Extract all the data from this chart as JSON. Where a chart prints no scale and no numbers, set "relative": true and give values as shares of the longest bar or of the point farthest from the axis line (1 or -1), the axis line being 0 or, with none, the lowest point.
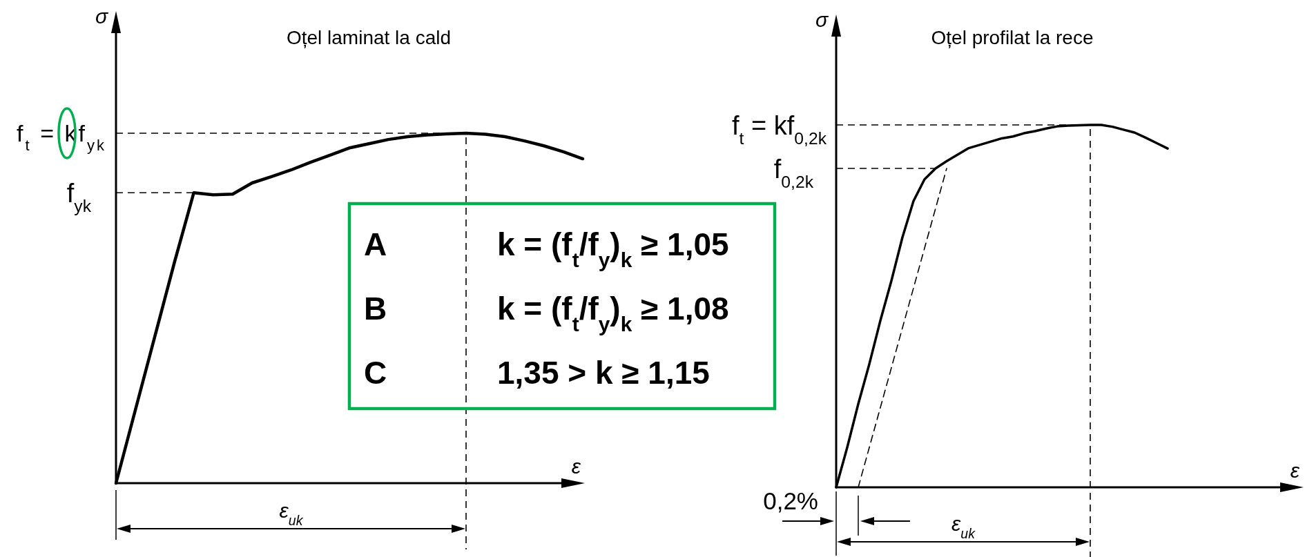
{
  "chart_data": [
    {
      "type": "line",
      "title": "Oțel laminat la cald",
      "xlabel": "ε",
      "ylabel": "σ",
      "relative": true,
      "line_style": "solid",
      "categories": [
        null,
        null,
        null,
        null,
        null,
        null,
        null,
        null,
        null,
        null,
        null,
        null,
        null,
        null,
        null,
        null,
        null,
        null,
        null,
        null,
        null,
        null,
        null,
        null,
        null
      ],
      "series": [
        {
          "color": "#000000",
          "values": [
            0,
            0.21,
            0.42,
            0.63,
            0.83,
            0.824,
            0.826,
            0.858,
            0.876,
            0.895,
            0.917,
            0.937,
            0.958,
            0.97,
            0.982,
            0.99,
            0.995,
            0.998,
            1,
            0.997,
            0.99,
            0.978,
            0.964,
            0.947,
            0.927
          ]
        }
      ],
      "ref_lines": [
        {
          "axis": "y",
          "value": 1,
          "label": "f$_{t}$ = kf$_{yk}$",
          "line_style": "dashed"
        },
        {
          "axis": "y",
          "value": 0.83,
          "label": "f$_{yk}$",
          "line_style": "dashed"
        }
      ],
      "annotations": [
        "A",
        "k = (f$_{t}$/f$_{y}$)$_{k}$ ≥ 1,05",
        "B",
        "k = (f$_{t}$/f$_{y}$)$_{k}$ ≥ 1,08",
        "C",
        "1,35 > k ≥ 1,15",
        "ε$_{uk}$"
      ]
    },
    {
      "type": "line",
      "title": "Oțel profilat la rece",
      "xlabel": "ε",
      "ylabel": "σ",
      "relative": true,
      "line_style": "solid",
      "categories": [
        null,
        null,
        null,
        null,
        null,
        null,
        null,
        null,
        null,
        null,
        null,
        null,
        null,
        null,
        null,
        null,
        null,
        null,
        null,
        null,
        null,
        null,
        null,
        null,
        null,
        null,
        null,
        null,
        null,
        null,
        null,
        null,
        null,
        null,
        null,
        null,
        null,
        null,
        null,
        null,
        null,
        null,
        null
      ],
      "series": [
        {
          "color": "#000000",
          "values": [
            0,
            0.11,
            0.23,
            0.34,
            0.46,
            0.57,
            0.69,
            0.79,
            0.85,
            0.88,
            0.9,
            0.918,
            0.936,
            0.945,
            0.954,
            0.963,
            0.968,
            0.977,
            0.983,
            0.99,
            0.996,
            0.998,
            0.999,
            1,
            1,
            0.995,
            0.987,
            0.979,
            0.965,
            0.95,
            0.935,
            null,
            null,
            null,
            null,
            null,
            null,
            null,
            null,
            null,
            null,
            null,
            null
          ]
        },
        {
          "color": "#000000",
          "line_style": "dashed",
          "values": [
            null,
            null,
            0,
            0.11,
            0.22,
            0.33,
            0.44,
            0.55,
            0.66,
            0.77,
            0.88,
            null,
            null,
            null,
            null,
            null,
            null,
            null,
            null,
            null,
            null,
            null,
            null,
            null,
            null,
            null,
            null,
            null,
            null,
            null,
            null,
            null,
            null,
            null,
            null,
            null,
            null,
            null,
            null,
            null,
            null,
            null,
            null
          ]
        }
      ],
      "ref_lines": [
        {
          "axis": "y",
          "value": 1,
          "label": "f$_{t}$ = kf$_{0,2k}$",
          "line_style": "dashed"
        },
        {
          "axis": "y",
          "value": 0.88,
          "label": "f$_{0,2k}$",
          "line_style": "dashed"
        }
      ],
      "annotations": [
        "0,2%",
        "ε$_{uk}$"
      ]
    }
  ]
}
